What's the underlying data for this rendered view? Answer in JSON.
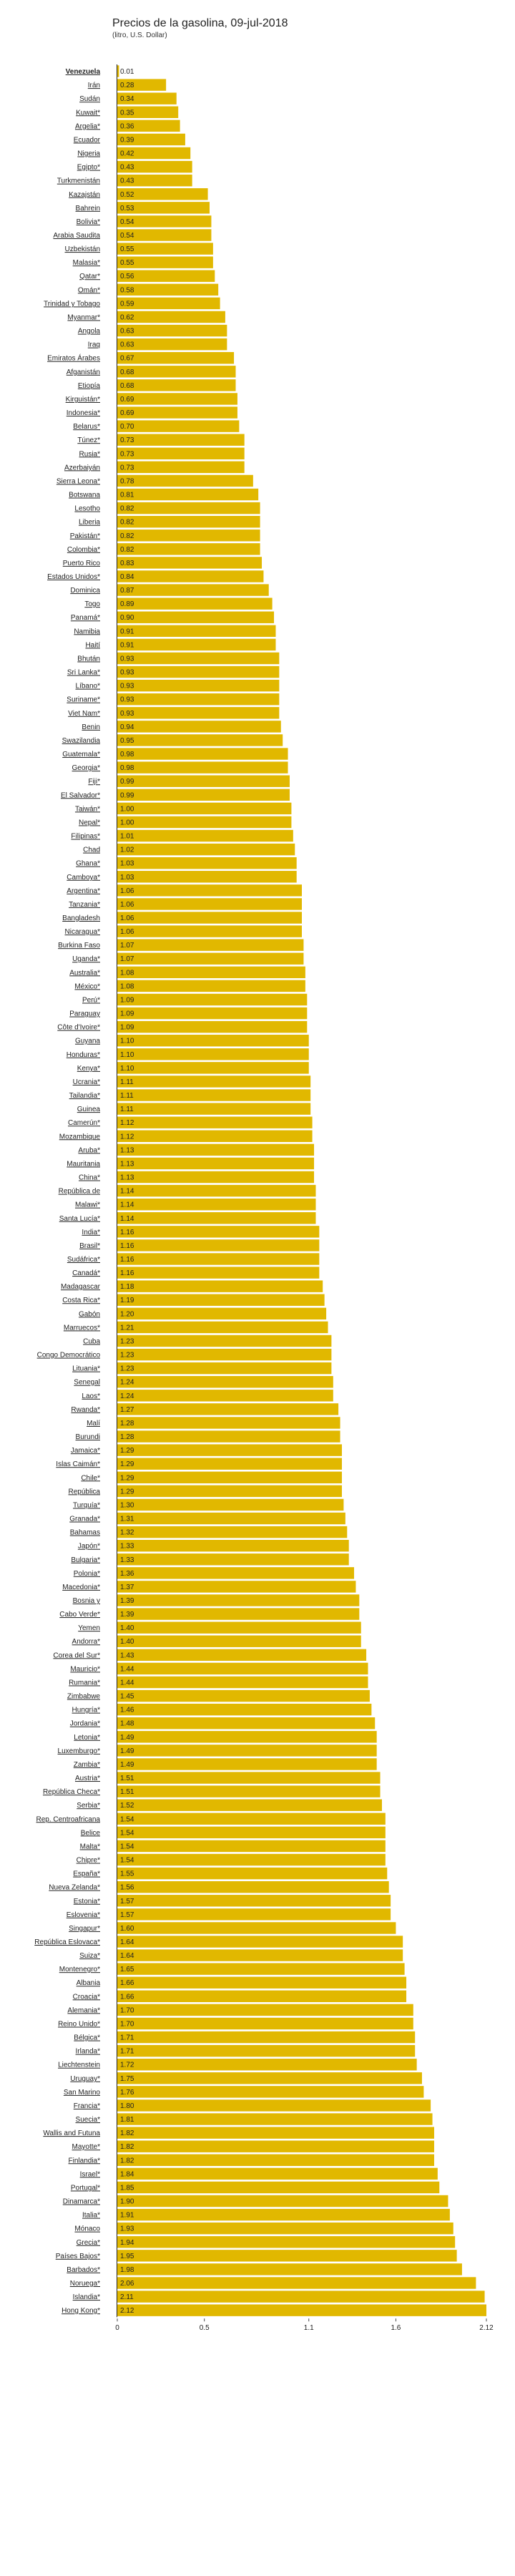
{
  "chart_data": {
    "type": "bar",
    "orientation": "horizontal",
    "title": "Precios de la gasolina, 09-jul-2018",
    "subtitle": "(litro, U.S. Dollar)",
    "bar_color": "#e1b800",
    "xlim": [
      0,
      2.12
    ],
    "xticks": [
      0,
      0.5,
      1.1,
      1.6,
      2.12
    ],
    "xtick_labels": [
      "0",
      "0.5",
      "1.1",
      "1.6",
      "2.12"
    ],
    "highlighted": "Venezuela",
    "categories": [
      "Venezuela",
      "Irán",
      "Sudán",
      "Kuwait*",
      "Argelia*",
      "Ecuador",
      "Nigeria",
      "Egipto*",
      "Turkmenistán",
      "Kazajstán",
      "Bahrein",
      "Bolivia*",
      "Arabia Saudita",
      "Uzbekistán",
      "Malasia*",
      "Qatar*",
      "Omán*",
      "Trinidad y Tobago",
      "Myanmar*",
      "Angola",
      "Iraq",
      "Emiratos Árabes",
      "Afganistán",
      "Etiopía",
      "Kirguistán*",
      "Indonesia*",
      "Belarus*",
      "Túnez*",
      "Rusia*",
      "Azerbaiyán",
      "Sierra Leona*",
      "Botswana",
      "Lesotho",
      "Liberia",
      "Pakistán*",
      "Colombia*",
      "Puerto Rico",
      "Estados Unidos*",
      "Dominica",
      "Togo",
      "Panamá*",
      "Namibia",
      "Haití",
      "Bhután",
      "Sri Lanka*",
      "Líbano*",
      "Suriname*",
      "Viet Nam*",
      "Benin",
      "Swazilandia",
      "Guatemala*",
      "Georgia*",
      "Fiji*",
      "El Salvador*",
      "Taiwán*",
      "Nepal*",
      "Filipinas*",
      "Chad",
      "Ghana*",
      "Camboya*",
      "Argentina*",
      "Tanzania*",
      "Bangladesh",
      "Nicaragua*",
      "Burkina Faso",
      "Uganda*",
      "Australia*",
      "México*",
      "Perú*",
      "Paraguay",
      "Côte d'Ivoire*",
      "Guyana",
      "Honduras*",
      "Kenya*",
      "Ucrania*",
      "Tailandia*",
      "Guinea",
      "Camerún*",
      "Mozambique",
      "Aruba*",
      "Mauritania",
      "China*",
      "República de",
      "Malawi*",
      "Santa Lucía*",
      "India*",
      "Brasil*",
      "Sudáfrica*",
      "Canadá*",
      "Madagascar",
      "Costa Rica*",
      "Gabón",
      "Marruecos*",
      "Cuba",
      "Congo Democrático",
      "Lituania*",
      "Senegal",
      "Laos*",
      "Rwanda*",
      "Malí",
      "Burundi",
      "Jamaica*",
      "Islas Caimán*",
      "Chile*",
      "República",
      "Turquía*",
      "Granada*",
      "Bahamas",
      "Japón*",
      "Bulgaria*",
      "Polonia*",
      "Macedonia*",
      "Bosnia y",
      "Cabo Verde*",
      "Yemen",
      "Andorra*",
      "Corea del Sur*",
      "Mauricio*",
      "Rumania*",
      "Zimbabwe",
      "Hungría*",
      "Jordania*",
      "Letonia*",
      "Luxemburgo*",
      "Zambia*",
      "Austria*",
      "República Checa*",
      "Serbia*",
      "Rep. Centroafricana",
      "Belice",
      "Malta*",
      "Chipre*",
      "España*",
      "Nueva Zelanda*",
      "Estonia*",
      "Eslovenia*",
      "Singapur*",
      "República Eslovaca*",
      "Suiza*",
      "Montenegro*",
      "Albania",
      "Croacia*",
      "Alemania*",
      "Reino Unido*",
      "Bélgica*",
      "Irlanda*",
      "Liechtenstein",
      "Uruguay*",
      "San Marino",
      "Francia*",
      "Suecia*",
      "Wallis and Futuna",
      "Mayotte*",
      "Finlandia*",
      "Israel*",
      "Portugal*",
      "Dinamarca*",
      "Italia*",
      "Mónaco",
      "Grecia*",
      "Países Bajos*",
      "Barbados*",
      "Noruega*",
      "Islandia*",
      "Hong Kong*"
    ],
    "values": [
      0.01,
      0.28,
      0.34,
      0.35,
      0.36,
      0.39,
      0.42,
      0.43,
      0.43,
      0.52,
      0.53,
      0.54,
      0.54,
      0.55,
      0.55,
      0.56,
      0.58,
      0.59,
      0.62,
      0.63,
      0.63,
      0.67,
      0.68,
      0.68,
      0.69,
      0.69,
      0.7,
      0.73,
      0.73,
      0.73,
      0.78,
      0.81,
      0.82,
      0.82,
      0.82,
      0.82,
      0.83,
      0.84,
      0.87,
      0.89,
      0.9,
      0.91,
      0.91,
      0.93,
      0.93,
      0.93,
      0.93,
      0.93,
      0.94,
      0.95,
      0.98,
      0.98,
      0.99,
      0.99,
      1.0,
      1.0,
      1.01,
      1.02,
      1.03,
      1.03,
      1.06,
      1.06,
      1.06,
      1.06,
      1.07,
      1.07,
      1.08,
      1.08,
      1.09,
      1.09,
      1.09,
      1.1,
      1.1,
      1.1,
      1.11,
      1.11,
      1.11,
      1.12,
      1.12,
      1.13,
      1.13,
      1.13,
      1.14,
      1.14,
      1.14,
      1.16,
      1.16,
      1.16,
      1.16,
      1.18,
      1.19,
      1.2,
      1.21,
      1.23,
      1.23,
      1.23,
      1.24,
      1.24,
      1.27,
      1.28,
      1.28,
      1.29,
      1.29,
      1.29,
      1.29,
      1.3,
      1.31,
      1.32,
      1.33,
      1.33,
      1.36,
      1.37,
      1.39,
      1.39,
      1.4,
      1.4,
      1.43,
      1.44,
      1.44,
      1.45,
      1.46,
      1.48,
      1.49,
      1.49,
      1.49,
      1.51,
      1.51,
      1.52,
      1.54,
      1.54,
      1.54,
      1.54,
      1.55,
      1.56,
      1.57,
      1.57,
      1.6,
      1.64,
      1.64,
      1.65,
      1.66,
      1.66,
      1.7,
      1.7,
      1.71,
      1.71,
      1.72,
      1.75,
      1.76,
      1.8,
      1.81,
      1.82,
      1.82,
      1.82,
      1.84,
      1.85,
      1.9,
      1.91,
      1.93,
      1.94,
      1.95,
      1.98,
      2.06,
      2.11,
      2.12
    ]
  }
}
